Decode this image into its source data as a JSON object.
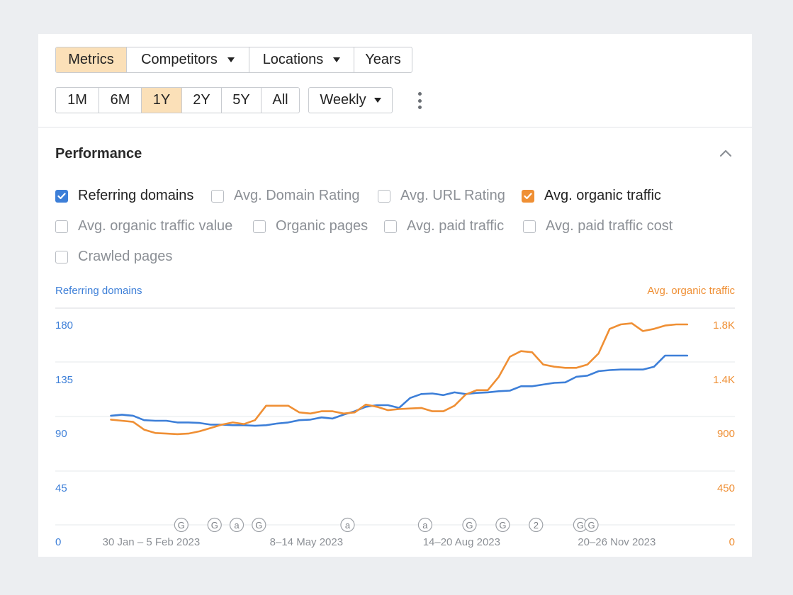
{
  "toolbar": {
    "tabs": [
      {
        "label": "Metrics",
        "active": true
      },
      {
        "label": "Competitors",
        "dropdown": true
      },
      {
        "label": "Locations",
        "dropdown": true
      },
      {
        "label": "Years"
      }
    ],
    "ranges": [
      {
        "label": "1M"
      },
      {
        "label": "6M"
      },
      {
        "label": "1Y",
        "active": true
      },
      {
        "label": "2Y"
      },
      {
        "label": "5Y"
      },
      {
        "label": "All"
      }
    ],
    "granularity": "Weekly",
    "more_icon": "vertical-ellipsis-icon"
  },
  "performance": {
    "title": "Performance",
    "collapse_icon": "chevron-up-icon",
    "metrics": [
      {
        "label": "Referring domains",
        "checked": true,
        "color": "#3d7fd8"
      },
      {
        "label": "Avg. Domain Rating",
        "checked": false
      },
      {
        "label": "Avg. URL Rating",
        "checked": false
      },
      {
        "label": "Avg. organic traffic",
        "checked": true,
        "color": "#ef8f34"
      },
      {
        "label": "Avg. organic traffic value",
        "checked": false
      },
      {
        "label": "Organic pages",
        "checked": false
      },
      {
        "label": "Avg. paid traffic",
        "checked": false
      },
      {
        "label": "Avg. paid traffic cost",
        "checked": false
      },
      {
        "label": "Crawled pages",
        "checked": false
      }
    ]
  },
  "chart_data": {
    "type": "line",
    "left_axis_label": "Referring domains",
    "right_axis_label": "Avg. organic traffic",
    "left_ticks": [
      "0",
      "45",
      "90",
      "135",
      "180"
    ],
    "right_ticks": [
      "0",
      "450",
      "900",
      "1.4K",
      "1.8K"
    ],
    "left_ylim": [
      0,
      198
    ],
    "right_ylim": [
      0,
      1980
    ],
    "x_tick_labels": [
      {
        "label": "30 Jan – 5 Feb 2023",
        "index": 3
      },
      {
        "label": "8–14 May 2023",
        "index": 17
      },
      {
        "label": "14–20 Aug 2023",
        "index": 31
      },
      {
        "label": "20–26 Nov 2023",
        "index": 45
      }
    ],
    "grid": true,
    "annotations": [
      {
        "text": "G",
        "index": 6
      },
      {
        "text": "G",
        "index": 9
      },
      {
        "text": "a",
        "index": 11
      },
      {
        "text": "G",
        "index": 13
      },
      {
        "text": "a",
        "index": 21
      },
      {
        "text": "a",
        "index": 28
      },
      {
        "text": "G",
        "index": 32
      },
      {
        "text": "G",
        "index": 35
      },
      {
        "text": "2",
        "index": 38
      },
      {
        "text": "G",
        "index": 42
      },
      {
        "text": "G",
        "index": 43
      }
    ],
    "series": [
      {
        "name": "Referring domains",
        "axis": "left",
        "color": "#3d7fd8",
        "values": [
          98,
          99,
          98,
          94,
          93.5,
          93.5,
          92,
          92,
          91.5,
          90,
          90,
          89.5,
          89.5,
          89,
          89.5,
          91,
          92,
          94,
          94.5,
          96.5,
          95.5,
          99,
          102,
          106,
          107.5,
          107.5,
          105,
          114,
          117.5,
          118,
          116.5,
          119,
          117.5,
          118.5,
          119,
          120,
          120.5,
          124.5,
          124.5,
          126,
          127.5,
          128,
          133,
          134,
          138,
          139,
          139.5,
          139.5,
          139.5,
          142,
          152,
          152,
          152
        ]
      },
      {
        "name": "Avg. organic traffic",
        "axis": "right",
        "color": "#ef8f34",
        "values": [
          945,
          935,
          925,
          855,
          825,
          820,
          815,
          820,
          840,
          870,
          900,
          920,
          905,
          940,
          1070,
          1070,
          1070,
          1010,
          1000,
          1020,
          1020,
          1000,
          1010,
          1080,
          1060,
          1030,
          1040,
          1045,
          1050,
          1020,
          1020,
          1070,
          1170,
          1210,
          1210,
          1330,
          1510,
          1560,
          1550,
          1440,
          1420,
          1410,
          1410,
          1440,
          1540,
          1760,
          1800,
          1810,
          1740,
          1760,
          1790,
          1800,
          1800
        ]
      }
    ]
  }
}
